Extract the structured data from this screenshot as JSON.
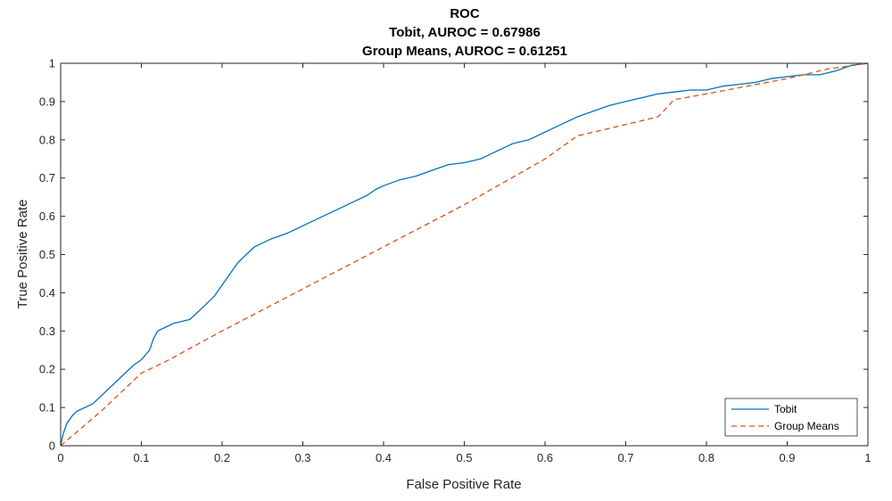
{
  "chart_data": {
    "type": "line",
    "title": "ROC",
    "subtitle_lines": [
      "Tobit, AUROC = 0.67986",
      "Group Means, AUROC = 0.61251"
    ],
    "xlabel": "False Positive Rate",
    "ylabel": "True Positive Rate",
    "xlim": [
      0,
      1
    ],
    "ylim": [
      0,
      1
    ],
    "x_ticks": [
      "0",
      "0.1",
      "0.2",
      "0.3",
      "0.4",
      "0.5",
      "0.6",
      "0.7",
      "0.8",
      "0.9",
      "1"
    ],
    "y_ticks": [
      "0",
      "0.1",
      "0.2",
      "0.3",
      "0.4",
      "0.5",
      "0.6",
      "0.7",
      "0.8",
      "0.9",
      "1"
    ],
    "grid": false,
    "legend_position": "bottom-right",
    "series": [
      {
        "name": "Tobit",
        "color": "#0072BD",
        "style": "solid",
        "points": [
          [
            0,
            0
          ],
          [
            0.003,
            0.03
          ],
          [
            0.008,
            0.06
          ],
          [
            0.015,
            0.08
          ],
          [
            0.02,
            0.09
          ],
          [
            0.03,
            0.1
          ],
          [
            0.04,
            0.11
          ],
          [
            0.05,
            0.13
          ],
          [
            0.06,
            0.15
          ],
          [
            0.07,
            0.17
          ],
          [
            0.08,
            0.19
          ],
          [
            0.09,
            0.21
          ],
          [
            0.1,
            0.225
          ],
          [
            0.11,
            0.25
          ],
          [
            0.115,
            0.28
          ],
          [
            0.12,
            0.3
          ],
          [
            0.13,
            0.31
          ],
          [
            0.14,
            0.32
          ],
          [
            0.16,
            0.33
          ],
          [
            0.17,
            0.35
          ],
          [
            0.18,
            0.37
          ],
          [
            0.19,
            0.39
          ],
          [
            0.2,
            0.42
          ],
          [
            0.21,
            0.45
          ],
          [
            0.22,
            0.48
          ],
          [
            0.23,
            0.5
          ],
          [
            0.24,
            0.52
          ],
          [
            0.26,
            0.54
          ],
          [
            0.28,
            0.555
          ],
          [
            0.3,
            0.575
          ],
          [
            0.32,
            0.595
          ],
          [
            0.34,
            0.615
          ],
          [
            0.36,
            0.635
          ],
          [
            0.38,
            0.655
          ],
          [
            0.39,
            0.67
          ],
          [
            0.4,
            0.68
          ],
          [
            0.42,
            0.695
          ],
          [
            0.44,
            0.705
          ],
          [
            0.46,
            0.72
          ],
          [
            0.48,
            0.735
          ],
          [
            0.5,
            0.74
          ],
          [
            0.52,
            0.75
          ],
          [
            0.54,
            0.77
          ],
          [
            0.56,
            0.79
          ],
          [
            0.58,
            0.8
          ],
          [
            0.6,
            0.82
          ],
          [
            0.62,
            0.84
          ],
          [
            0.64,
            0.86
          ],
          [
            0.66,
            0.875
          ],
          [
            0.68,
            0.89
          ],
          [
            0.7,
            0.9
          ],
          [
            0.72,
            0.91
          ],
          [
            0.74,
            0.92
          ],
          [
            0.76,
            0.925
          ],
          [
            0.78,
            0.93
          ],
          [
            0.8,
            0.93
          ],
          [
            0.82,
            0.94
          ],
          [
            0.84,
            0.945
          ],
          [
            0.86,
            0.95
          ],
          [
            0.88,
            0.96
          ],
          [
            0.9,
            0.965
          ],
          [
            0.92,
            0.97
          ],
          [
            0.94,
            0.97
          ],
          [
            0.96,
            0.98
          ],
          [
            0.98,
            0.995
          ],
          [
            1,
            1
          ]
        ]
      },
      {
        "name": "Group Means",
        "color": "#D95319",
        "style": "dashed",
        "points": [
          [
            0,
            0
          ],
          [
            0.05,
            0.09
          ],
          [
            0.1,
            0.19
          ],
          [
            0.13,
            0.22
          ],
          [
            0.2,
            0.3
          ],
          [
            0.3,
            0.41
          ],
          [
            0.4,
            0.52
          ],
          [
            0.5,
            0.63
          ],
          [
            0.6,
            0.75
          ],
          [
            0.64,
            0.81
          ],
          [
            0.7,
            0.84
          ],
          [
            0.74,
            0.86
          ],
          [
            0.76,
            0.905
          ],
          [
            0.8,
            0.92
          ],
          [
            0.85,
            0.94
          ],
          [
            0.9,
            0.96
          ],
          [
            0.95,
            0.985
          ],
          [
            1,
            1
          ]
        ]
      }
    ]
  }
}
